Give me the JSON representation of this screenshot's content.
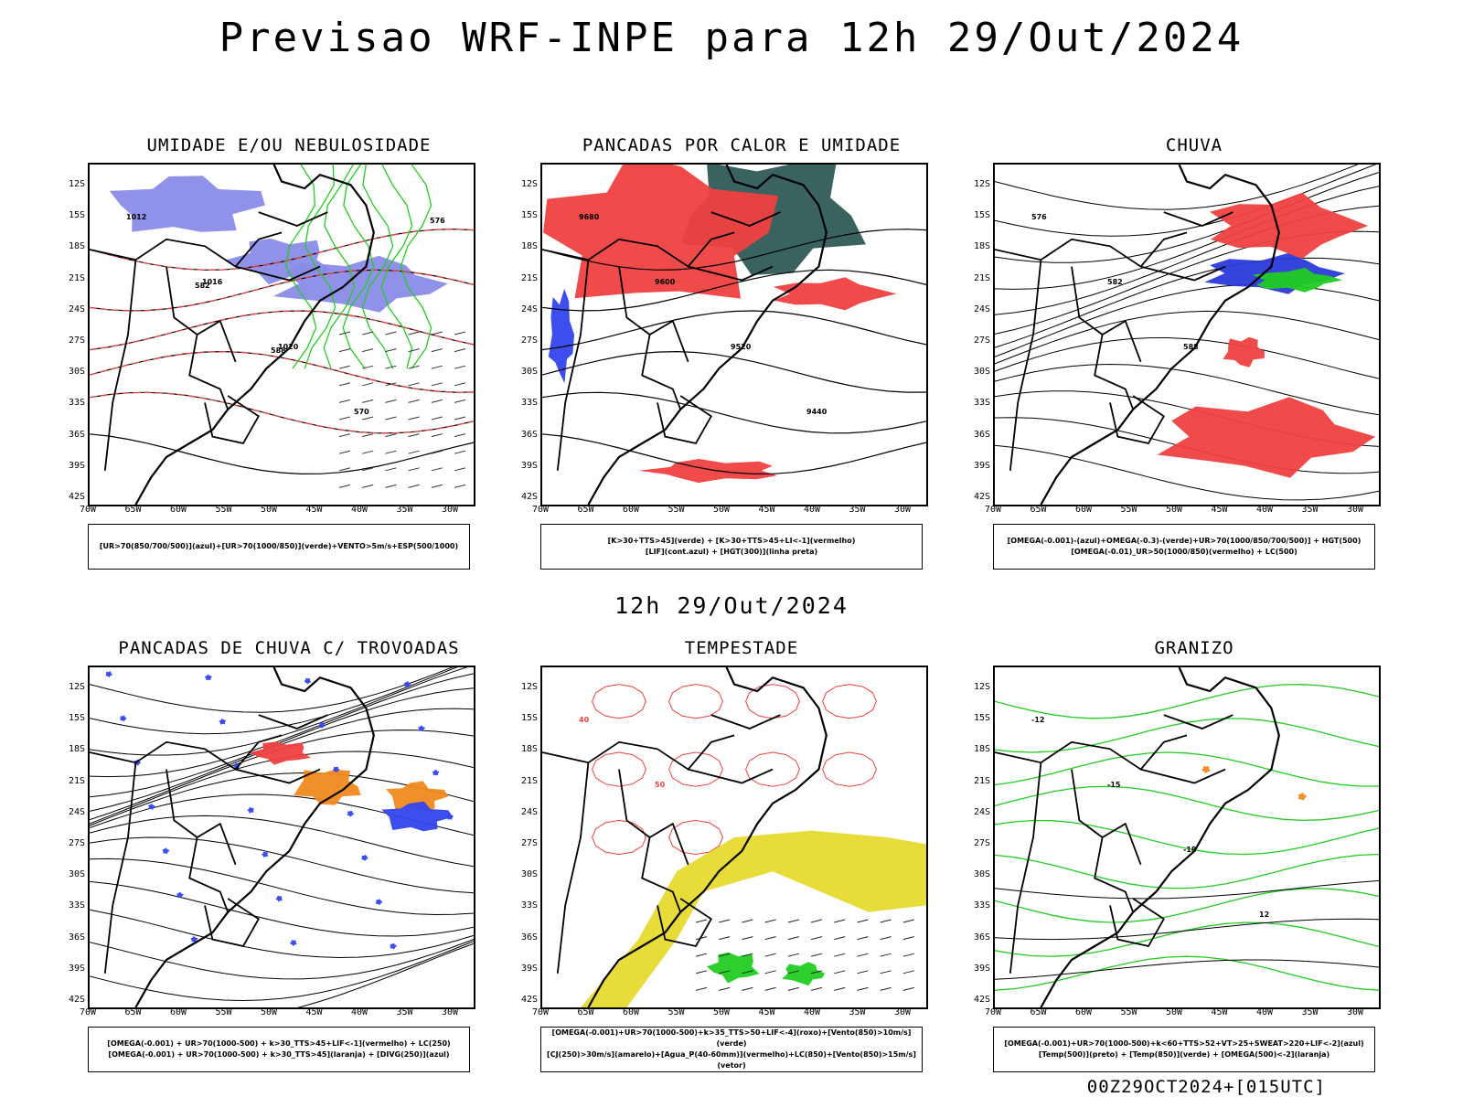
{
  "header": {
    "title": "Previsao WRF-INPE  para 12h 29/Out/2024"
  },
  "mid_date": "12h 29/Out/2024",
  "footer_stamp": "00Z29OCT2024+[015UTC]",
  "axis": {
    "lat_labels": [
      "12S",
      "15S",
      "18S",
      "21S",
      "24S",
      "27S",
      "30S",
      "33S",
      "36S",
      "39S",
      "42S"
    ],
    "lon_labels": [
      "70W",
      "65W",
      "60W",
      "55W",
      "50W",
      "45W",
      "40W",
      "35W",
      "30W"
    ]
  },
  "panels": [
    {
      "title": "UMIDADE E/OU NEBULOSIDADE",
      "legend": [
        "[UR>70(850/700/500)](azul)+[UR>70(1000/850)](verde)+VENTO>5m/s+ESP(500/1000)"
      ],
      "contour_labels": [
        "1012",
        "1016",
        "1020",
        "570",
        "576",
        "582",
        "588"
      ]
    },
    {
      "title": "PANCADAS POR CALOR E UMIDADE",
      "legend": [
        "[K>30+TTS>45](verde) + [K>30+TTS>45+LI<-1](vermelho)",
        "[LIF](cont.azul) + [HGT(300)](linha preta)"
      ],
      "contour_labels": [
        "9680",
        "9600",
        "9520",
        "9440"
      ]
    },
    {
      "title": "CHUVA",
      "legend": [
        "[OMEGA(-0.001)-(azul)+OMEGA(-0.3)-(verde)+UR>70(1000/850/700/500)] + HGT(500)",
        "[OMEGA(-0.01)_UR>50(1000/850)(vermelho) + LC(500)"
      ],
      "contour_labels": [
        "576",
        "582",
        "588"
      ]
    },
    {
      "title": "PANCADAS DE CHUVA C/ TROVOADAS",
      "legend": [
        "[OMEGA(-0.001) + UR>70(1000-500) + k>30_TTS>45+LIF<-1](vermelho) + LC(250)",
        "[OMEGA(-0.001) + UR>70(1000-500) + k>30_TTS>45](laranja) + [DIVG(250)](azul)"
      ],
      "contour_labels": []
    },
    {
      "title": "TEMPESTADE",
      "legend": [
        "[OMEGA(-0.001)+UR>70(1000-500)+k>35_TTS>50+LIF<-4](roxo)+[Vento(850)>10m/s](verde)",
        "[CJ(250)>30m/s](amarelo)+[Agua_P(40-60mm)](vermelho)+LC(850)+[Vento(850)>15m/s](vetor)"
      ],
      "contour_labels": [
        "40",
        "50"
      ]
    },
    {
      "title": "GRANIZO",
      "legend": [
        "[OMEGA(-0.001)+UR>70(1000-500)+k<60+TTS>52+VT>25+SWEAT>220+LIF<-2](azul)",
        "[Temp(500)](preto) + [Temp(850)](verde) + [OMEGA(500)<-2](laranja)"
      ],
      "contour_labels": [
        "-12",
        "-15",
        "-18",
        "12"
      ]
    }
  ],
  "colors": {
    "blue_humidity": "#8a8ce8",
    "green": "#22cc22",
    "red": "#f04040",
    "dark_teal": "#2f5a55",
    "blue_line": "#3344ee",
    "orange": "#f08a20",
    "yellow": "#e8dc3a",
    "black": "#000000"
  }
}
